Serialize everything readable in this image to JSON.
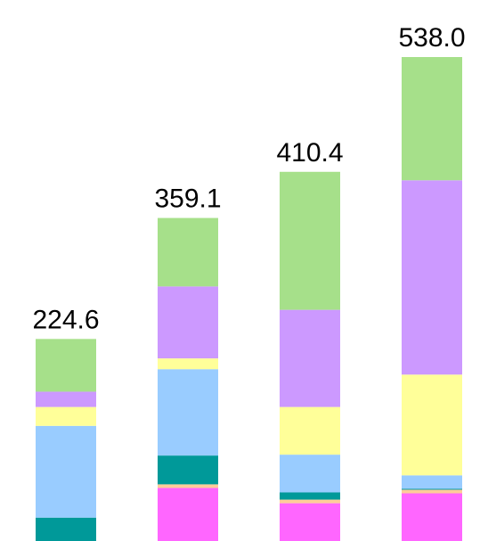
{
  "chart_data": {
    "type": "stacked-bar",
    "series": [
      {
        "color": "#ff66ff",
        "values": [
          0,
          59,
          42,
          53
        ]
      },
      {
        "color": "#ffcc99",
        "values": [
          0,
          4,
          4,
          4
        ]
      },
      {
        "color": "#009999",
        "values": [
          26,
          32,
          8,
          1
        ]
      },
      {
        "color": "#99ccff",
        "values": [
          102,
          96,
          42,
          15
        ]
      },
      {
        "color": "#ffff99",
        "values": [
          21,
          12,
          53,
          112
        ]
      },
      {
        "color": "#cc99ff",
        "values": [
          17,
          80,
          108,
          216
        ]
      },
      {
        "color": "#a6e08a",
        "values": [
          58.6,
          76.1,
          153.4,
          137
        ]
      }
    ],
    "totals": [
      224.6,
      359.1,
      410.4,
      538.0
    ],
    "total_labels": [
      "224.6",
      "359.1",
      "410.4",
      "538.0"
    ]
  }
}
